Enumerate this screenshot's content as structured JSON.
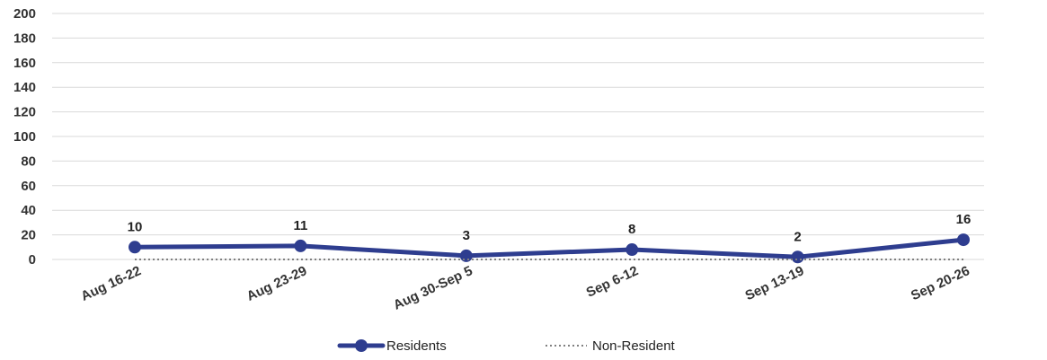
{
  "chart_data": {
    "type": "line",
    "categories": [
      "Aug 16-22",
      "Aug 23-29",
      "Aug 30-Sep 5",
      "Sep 6-12",
      "Sep 13-19",
      "Sep 20-26"
    ],
    "series": [
      {
        "name": "Residents",
        "values": [
          10,
          11,
          3,
          8,
          2,
          16
        ],
        "color": "#2E3D8F",
        "style": "solid",
        "markers": true,
        "data_labels": true
      },
      {
        "name": "Non-Resident",
        "values": [
          0,
          0,
          0,
          0,
          0,
          0
        ],
        "color": "#808080",
        "style": "dotted",
        "markers": false,
        "data_labels": false
      }
    ],
    "title": "",
    "xlabel": "",
    "ylabel": "",
    "ylim": [
      0,
      200
    ],
    "yticks": [
      0,
      20,
      40,
      60,
      80,
      100,
      120,
      140,
      160,
      180,
      200
    ],
    "grid": true,
    "legend": "bottom-center"
  }
}
